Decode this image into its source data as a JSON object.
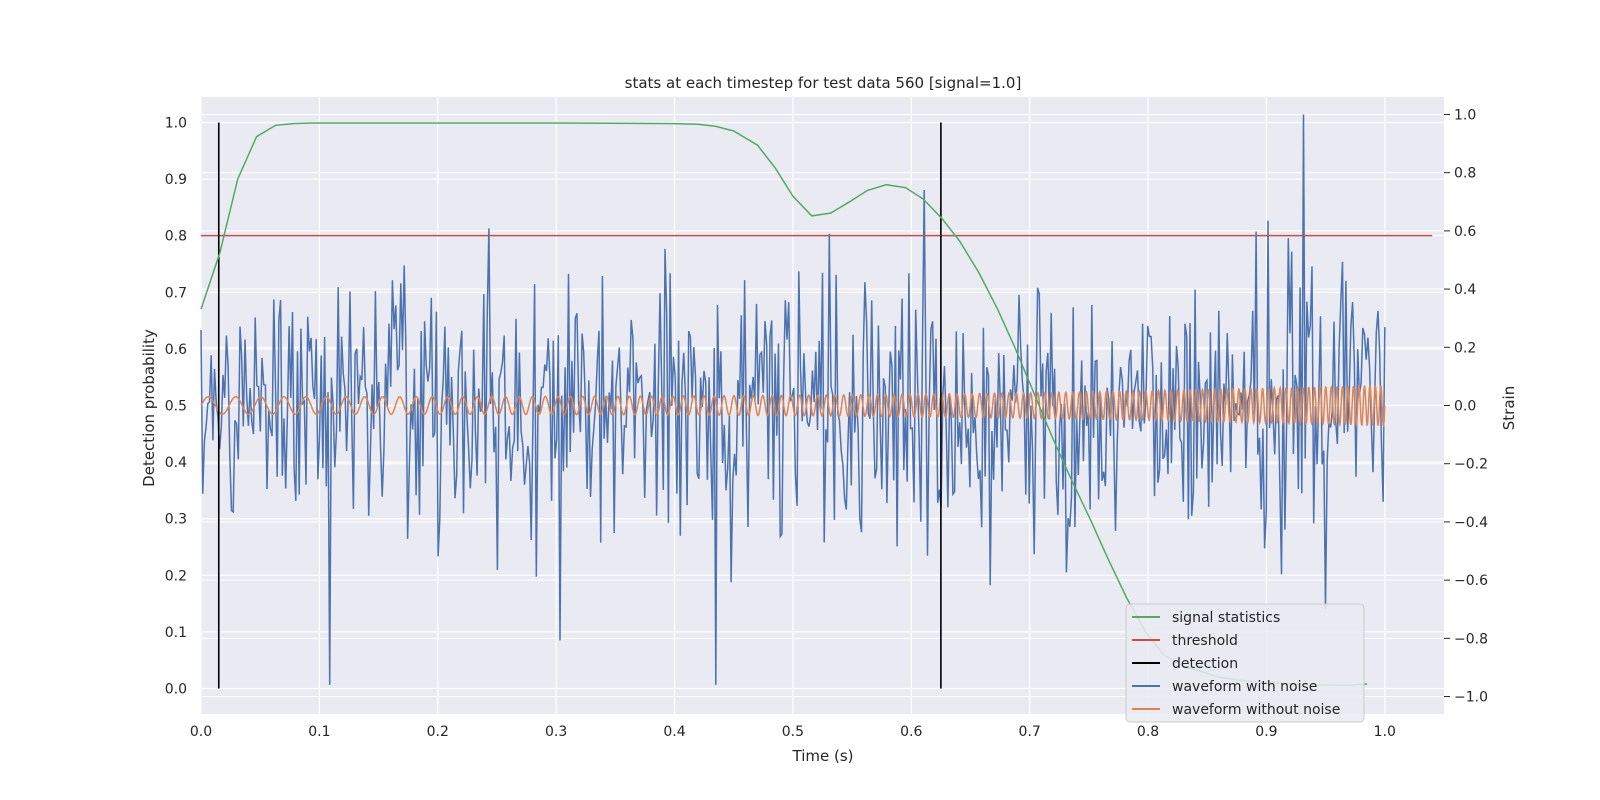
{
  "chart_data": {
    "type": "line",
    "title": "stats at each timestep for test data 560 [signal=1.0]",
    "xlabel": "Time (s)",
    "ylabel": "Detection probability",
    "y2label": "Strain",
    "xlim": [
      0.0,
      1.05
    ],
    "ylim": [
      -0.045,
      1.045
    ],
    "y2lim": [
      -1.06,
      1.06
    ],
    "xticks": [
      "0.0",
      "0.1",
      "0.2",
      "0.3",
      "0.4",
      "0.5",
      "0.6",
      "0.7",
      "0.8",
      "0.9",
      "1.0"
    ],
    "yticks": [
      "0.0",
      "0.1",
      "0.2",
      "0.3",
      "0.4",
      "0.5",
      "0.6",
      "0.7",
      "0.8",
      "0.9",
      "1.0"
    ],
    "y2ticks": [
      "−1.0",
      "−0.8",
      "−0.6",
      "−0.4",
      "−0.2",
      "0.0",
      "0.2",
      "0.4",
      "0.6",
      "0.8",
      "1.0"
    ],
    "grid": true,
    "legend_position": "lower-right",
    "signal_statistics": {
      "x": [
        0.0,
        0.016,
        0.031,
        0.047,
        0.063,
        0.078,
        0.094,
        0.109,
        0.125,
        0.2,
        0.3,
        0.4,
        0.42,
        0.435,
        0.45,
        0.47,
        0.485,
        0.5,
        0.516,
        0.532,
        0.548,
        0.563,
        0.579,
        0.595,
        0.61,
        0.626,
        0.641,
        0.657,
        0.673,
        0.688,
        0.704,
        0.72,
        0.735,
        0.751,
        0.766,
        0.782,
        0.798,
        0.813,
        0.829,
        0.845,
        0.86,
        0.876,
        0.891,
        0.907,
        0.923,
        0.938,
        0.954,
        0.97,
        0.985
      ],
      "y": [
        0.67,
        0.77,
        0.9,
        0.975,
        0.995,
        0.998,
        0.999,
        0.999,
        0.999,
        0.999,
        0.999,
        0.998,
        0.997,
        0.993,
        0.985,
        0.96,
        0.92,
        0.87,
        0.835,
        0.84,
        0.86,
        0.88,
        0.89,
        0.885,
        0.865,
        0.83,
        0.79,
        0.735,
        0.67,
        0.6,
        0.52,
        0.44,
        0.37,
        0.3,
        0.23,
        0.16,
        0.1,
        0.06,
        0.04,
        0.03,
        0.02,
        0.015,
        0.012,
        0.01,
        0.008,
        0.007,
        0.006,
        0.006,
        0.008
      ],
      "color": "#55a868"
    },
    "threshold": {
      "y": 0.8,
      "x_range": [
        0.0,
        1.04
      ],
      "color": "#c44e52"
    },
    "detections": {
      "x": [
        0.015,
        0.625
      ],
      "y_range": [
        0.0,
        1.0
      ],
      "color": "#000000"
    },
    "waveform_with_noise": {
      "x_range": [
        0.0,
        1.0
      ],
      "samples": 700,
      "seed": 560,
      "sigma": 0.23,
      "max": 1.0,
      "min": -0.96,
      "color": "#4c72b0"
    },
    "waveform_without_noise": {
      "x_range": [
        0.0,
        1.0
      ],
      "amplitude_start": 0.03,
      "amplitude_end": 0.07,
      "freq_start_hz": 40,
      "freq_end_hz": 220,
      "color": "#dd8452"
    },
    "legend": [
      {
        "label": "signal statistics",
        "color": "#55a868"
      },
      {
        "label": "threshold",
        "color": "#c44e52"
      },
      {
        "label": "detection",
        "color": "#000000"
      },
      {
        "label": "waveform with noise",
        "color": "#4c72b0"
      },
      {
        "label": "waveform without noise",
        "color": "#dd8452"
      }
    ]
  }
}
